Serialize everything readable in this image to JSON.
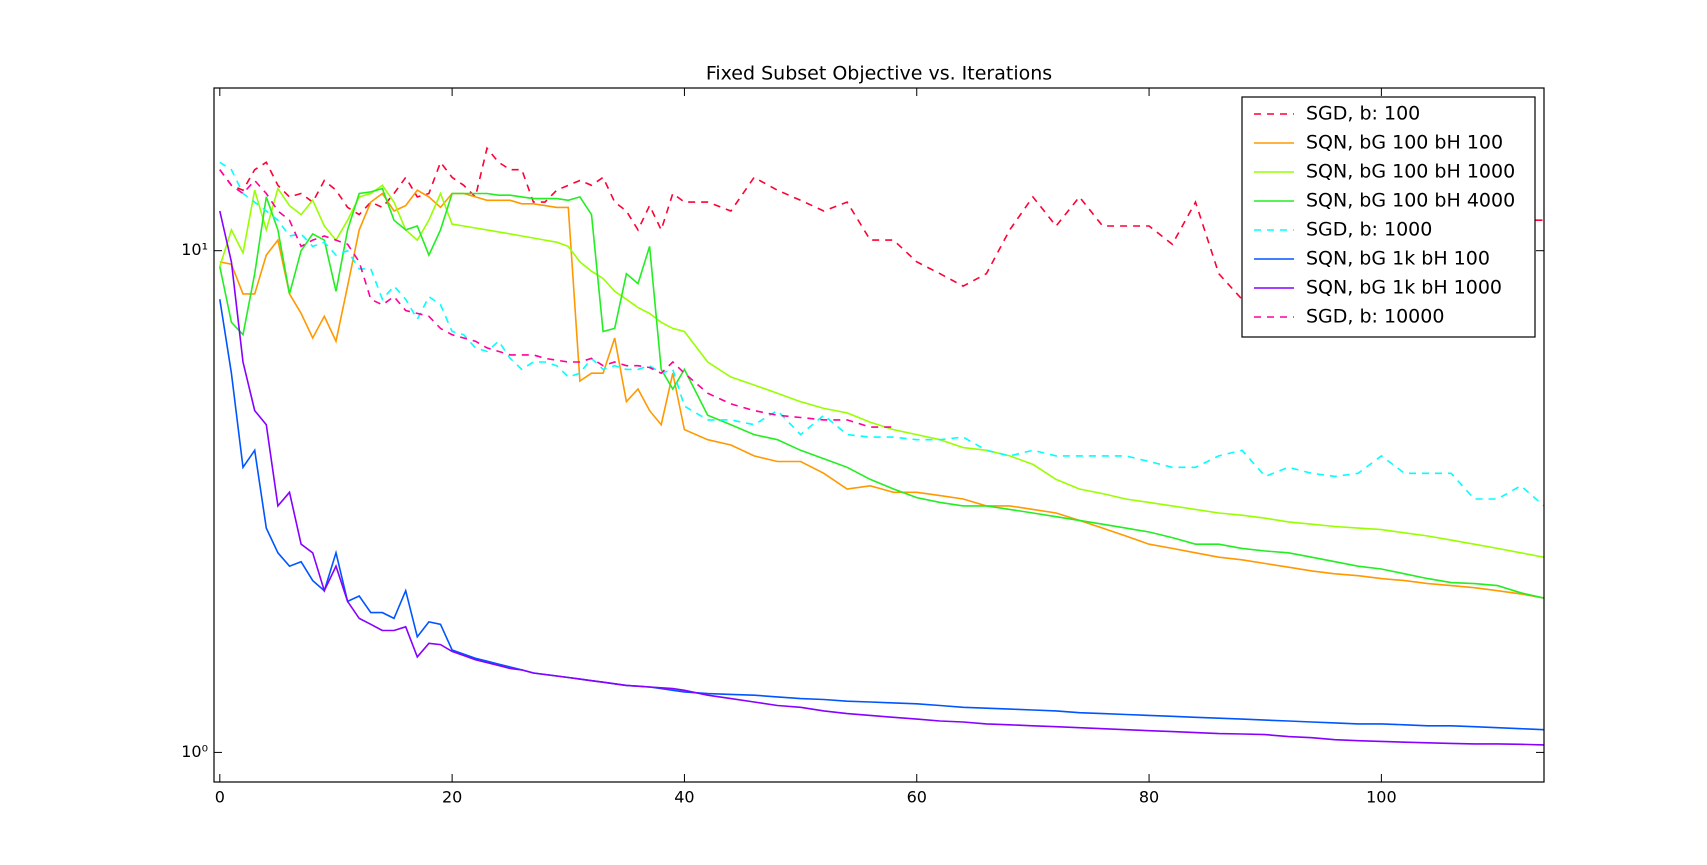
{
  "chart_data": {
    "type": "line",
    "title": "Fixed Subset Objective vs. Iterations",
    "x": [
      0,
      1,
      2,
      3,
      4,
      5,
      6,
      7,
      8,
      9,
      10,
      11,
      12,
      13,
      14,
      15,
      16,
      17,
      18,
      19,
      20,
      21,
      22,
      23,
      24,
      25,
      26,
      27,
      28,
      29,
      30,
      31,
      32,
      33,
      34,
      35,
      36,
      37,
      38,
      39,
      40,
      42,
      44,
      46,
      48,
      50,
      52,
      54,
      56,
      58,
      60,
      62,
      64,
      66,
      68,
      70,
      72,
      74,
      76,
      78,
      80,
      82,
      84,
      86,
      88,
      90,
      92,
      94,
      96,
      98,
      100,
      102,
      104,
      106,
      108,
      110,
      112,
      114
    ],
    "xlim": [
      -0.5,
      114
    ],
    "xticks": [
      0,
      20,
      40,
      60,
      80,
      100
    ],
    "ylim": [
      0.873,
      21.1
    ],
    "log_y": true,
    "yticks": [
      {
        "value": 1,
        "label": "10⁰"
      },
      {
        "value": 10,
        "label": "10¹"
      }
    ],
    "legend": "upper right",
    "series": [
      {
        "name": "SGD, b: 100",
        "color": "#ff0033",
        "linestyle": "dashed",
        "values": [
          14.5,
          13.5,
          13.2,
          14.5,
          15,
          13.5,
          12.8,
          13,
          12.5,
          13.8,
          13.2,
          12.2,
          11.8,
          12.5,
          12.2,
          13,
          14,
          12.8,
          13,
          15,
          14,
          13.5,
          12.8,
          16,
          15,
          14.5,
          14.5,
          12.5,
          12.5,
          13.2,
          13.5,
          13.8,
          13.5,
          14,
          12.5,
          12,
          11,
          12.3,
          11,
          13,
          12.5,
          12.5,
          12,
          14,
          13.2,
          12.6,
          12,
          12.5,
          10.5,
          10.5,
          9.5,
          9,
          8.5,
          9,
          11,
          12.8,
          11.2,
          12.8,
          11.2,
          11.2,
          11.2,
          10.3,
          12.5,
          9,
          8,
          9,
          8.5,
          9,
          8.5,
          9,
          9.5,
          10,
          10.5,
          11,
          12,
          11,
          11.5,
          11.5
        ]
      },
      {
        "name": "SQN, bG 100 bH 100",
        "color": "#ff9900",
        "linestyle": "solid",
        "values": [
          9.5,
          9.4,
          8.2,
          8.2,
          9.8,
          10.5,
          8.2,
          7.5,
          6.7,
          7.4,
          6.6,
          8.5,
          11,
          12.5,
          13,
          12,
          12.3,
          13.2,
          12.8,
          12.2,
          13,
          13,
          12.8,
          12.6,
          12.6,
          12.6,
          12.4,
          12.4,
          12.3,
          12.2,
          12.2,
          5.5,
          5.7,
          5.7,
          6.7,
          5,
          5.3,
          4.8,
          4.5,
          5.7,
          4.4,
          4.2,
          4.1,
          3.9,
          3.8,
          3.8,
          3.6,
          3.35,
          3.4,
          3.3,
          3.3,
          3.25,
          3.2,
          3.1,
          3.1,
          3.05,
          3.0,
          2.9,
          2.8,
          2.7,
          2.6,
          2.55,
          2.5,
          2.45,
          2.42,
          2.38,
          2.34,
          2.3,
          2.27,
          2.25,
          2.22,
          2.2,
          2.17,
          2.15,
          2.13,
          2.1,
          2.07,
          2.03
        ]
      },
      {
        "name": "SQN, bG 100 bH 1000",
        "color": "#99ff00",
        "linestyle": "solid",
        "values": [
          9.3,
          11,
          9.9,
          13.2,
          11,
          13.3,
          12.3,
          11.8,
          12.6,
          11.2,
          10.5,
          11.5,
          12.8,
          13,
          13.5,
          12.5,
          11,
          10.5,
          11.5,
          13,
          11.3,
          11.2,
          11.1,
          11,
          10.9,
          10.8,
          10.7,
          10.6,
          10.5,
          10.4,
          10.2,
          9.5,
          9.1,
          8.8,
          8.3,
          8.0,
          7.7,
          7.5,
          7.2,
          7.0,
          6.9,
          6.0,
          5.6,
          5.4,
          5.2,
          5.0,
          4.85,
          4.75,
          4.55,
          4.4,
          4.3,
          4.2,
          4.05,
          4.0,
          3.9,
          3.75,
          3.5,
          3.35,
          3.28,
          3.2,
          3.15,
          3.1,
          3.05,
          3.0,
          2.97,
          2.93,
          2.88,
          2.85,
          2.82,
          2.8,
          2.78,
          2.74,
          2.7,
          2.65,
          2.6,
          2.55,
          2.5,
          2.45
        ]
      },
      {
        "name": "SQN, bG 100 bH 4000",
        "color": "#22ee22",
        "linestyle": "solid",
        "values": [
          9.3,
          7.2,
          6.8,
          9,
          12.8,
          11,
          8.2,
          10,
          10.8,
          10.5,
          8.3,
          11,
          13,
          13.1,
          13.3,
          11.5,
          11,
          11.2,
          9.8,
          11,
          13,
          13,
          13,
          13,
          12.9,
          12.9,
          12.8,
          12.7,
          12.7,
          12.7,
          12.6,
          12.8,
          11.8,
          6.9,
          7,
          9,
          8.6,
          10.2,
          5.8,
          5.3,
          5.8,
          4.7,
          4.5,
          4.3,
          4.2,
          4.0,
          3.85,
          3.7,
          3.5,
          3.35,
          3.22,
          3.15,
          3.1,
          3.1,
          3.05,
          3.0,
          2.95,
          2.9,
          2.85,
          2.8,
          2.75,
          2.68,
          2.6,
          2.6,
          2.55,
          2.52,
          2.5,
          2.45,
          2.4,
          2.35,
          2.32,
          2.27,
          2.22,
          2.18,
          2.17,
          2.15,
          2.08,
          2.03
        ]
      },
      {
        "name": "SGD, b: 1000",
        "color": "#00ffff",
        "linestyle": "dashed",
        "values": [
          15,
          14.5,
          13,
          12.5,
          12,
          11.5,
          10.7,
          10.8,
          10.2,
          10.4,
          9.8,
          10,
          9.2,
          9.2,
          8,
          8.5,
          8,
          7.3,
          8.1,
          7.8,
          6.9,
          6.8,
          6.4,
          6.3,
          6.6,
          6.1,
          5.8,
          6,
          6,
          5.9,
          5.6,
          5.7,
          6.1,
          5.8,
          5.9,
          5.8,
          5.8,
          5.9,
          5.7,
          5.8,
          4.9,
          4.6,
          4.6,
          4.5,
          4.8,
          4.3,
          4.7,
          4.3,
          4.25,
          4.25,
          4.2,
          4.2,
          4.25,
          4.0,
          3.9,
          4.0,
          3.9,
          3.9,
          3.9,
          3.9,
          3.8,
          3.7,
          3.7,
          3.9,
          4.0,
          3.55,
          3.7,
          3.6,
          3.55,
          3.6,
          3.9,
          3.6,
          3.6,
          3.6,
          3.2,
          3.2,
          3.4,
          3.1
        ]
      },
      {
        "name": "SQN, bG 1k bH 100",
        "color": "#0055ff",
        "linestyle": "solid",
        "values": [
          8,
          5.7,
          3.7,
          4,
          2.8,
          2.5,
          2.35,
          2.4,
          2.2,
          2.1,
          2.5,
          2,
          2.05,
          1.9,
          1.9,
          1.85,
          2.1,
          1.7,
          1.82,
          1.8,
          1.6,
          1.57,
          1.54,
          1.52,
          1.5,
          1.48,
          1.46,
          1.44,
          1.43,
          1.42,
          1.41,
          1.4,
          1.39,
          1.38,
          1.37,
          1.36,
          1.355,
          1.35,
          1.34,
          1.33,
          1.32,
          1.31,
          1.305,
          1.3,
          1.29,
          1.28,
          1.275,
          1.265,
          1.26,
          1.255,
          1.25,
          1.24,
          1.23,
          1.225,
          1.22,
          1.215,
          1.21,
          1.2,
          1.195,
          1.19,
          1.185,
          1.18,
          1.175,
          1.17,
          1.165,
          1.16,
          1.155,
          1.15,
          1.145,
          1.14,
          1.14,
          1.135,
          1.13,
          1.13,
          1.125,
          1.12,
          1.115,
          1.11
        ]
      },
      {
        "name": "SQN, bG 1k bH 1000",
        "color": "#8800ff",
        "linestyle": "solid",
        "values": [
          12,
          9.5,
          6,
          4.8,
          4.5,
          3.1,
          3.3,
          2.6,
          2.5,
          2.1,
          2.35,
          2.0,
          1.85,
          1.8,
          1.75,
          1.75,
          1.78,
          1.55,
          1.65,
          1.64,
          1.59,
          1.56,
          1.53,
          1.51,
          1.49,
          1.47,
          1.46,
          1.44,
          1.43,
          1.42,
          1.41,
          1.4,
          1.39,
          1.38,
          1.37,
          1.36,
          1.355,
          1.35,
          1.345,
          1.34,
          1.33,
          1.3,
          1.28,
          1.26,
          1.24,
          1.23,
          1.21,
          1.195,
          1.185,
          1.175,
          1.165,
          1.155,
          1.15,
          1.14,
          1.135,
          1.13,
          1.125,
          1.12,
          1.115,
          1.11,
          1.105,
          1.1,
          1.095,
          1.09,
          1.088,
          1.085,
          1.075,
          1.07,
          1.06,
          1.055,
          1.052,
          1.048,
          1.045,
          1.042,
          1.04,
          1.04,
          1.038,
          1.035
        ]
      },
      {
        "name": "SGD, b: 10000",
        "color": "#ff0099",
        "linestyle": "dashed",
        "values": [
          14.5,
          13.5,
          13,
          13.8,
          13,
          12,
          11.5,
          10.2,
          10.5,
          10.7,
          10.5,
          10.3,
          9.5,
          8,
          7.8,
          8.1,
          7.6,
          7.5,
          7.4,
          7.0,
          6.8,
          6.7,
          6.6,
          6.4,
          6.3,
          6.2,
          6.2,
          6.2,
          6.1,
          6.05,
          6.0,
          6.0,
          6.1,
          5.9,
          6.0,
          5.9,
          5.9,
          5.85,
          5.7,
          6.0,
          5.7,
          5.2,
          4.95,
          4.8,
          4.7,
          4.65,
          4.6,
          4.6,
          4.45,
          4.45,
          null,
          null,
          null,
          null,
          null,
          null,
          null,
          null,
          null,
          null,
          null,
          null,
          null,
          null,
          null,
          null,
          null,
          null,
          null,
          null,
          null,
          null,
          null,
          null,
          null,
          null,
          null,
          null
        ]
      }
    ]
  }
}
